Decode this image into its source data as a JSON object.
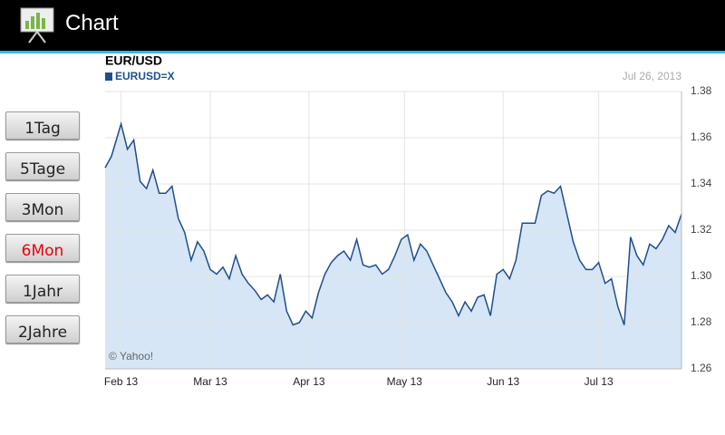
{
  "app": {
    "title": "Chart",
    "buttons": [
      "1Tag",
      "5Tage",
      "3Mon",
      "6Mon",
      "1Jahr",
      "2Jahre"
    ],
    "selected_button": 3
  },
  "chart_data": {
    "type": "area",
    "title": "EUR/USD",
    "date": "Jul 26, 2013",
    "credit": "© Yahoo!",
    "x": [
      -5,
      -3,
      0,
      2,
      4,
      6,
      8,
      10,
      12,
      14,
      16,
      18,
      20,
      22,
      24,
      26,
      28,
      30,
      32,
      34,
      36,
      38,
      40,
      42,
      44,
      46,
      48,
      50,
      52,
      54,
      56,
      58,
      60,
      62,
      64,
      66,
      68,
      70,
      72,
      74,
      76,
      78,
      80,
      82,
      84,
      86,
      88,
      90,
      92,
      94,
      96,
      98,
      100,
      102,
      104,
      106,
      108,
      110,
      112,
      114,
      116,
      118,
      120,
      122,
      124,
      126,
      128,
      130,
      132,
      134,
      136,
      138,
      140,
      142,
      144,
      146,
      148,
      150,
      152,
      154,
      156,
      158,
      160,
      162,
      164,
      166,
      168,
      170,
      172,
      174,
      176
    ],
    "series": [
      {
        "name": "EURUSD=X",
        "color": "#1f4e8c",
        "fill": "#d6e6f6",
        "values": [
          1.347,
          1.352,
          1.366,
          1.355,
          1.359,
          1.341,
          1.338,
          1.346,
          1.336,
          1.336,
          1.339,
          1.325,
          1.319,
          1.307,
          1.315,
          1.311,
          1.303,
          1.301,
          1.304,
          1.299,
          1.309,
          1.301,
          1.297,
          1.294,
          1.29,
          1.292,
          1.289,
          1.301,
          1.285,
          1.279,
          1.28,
          1.285,
          1.282,
          1.293,
          1.301,
          1.306,
          1.309,
          1.311,
          1.307,
          1.316,
          1.305,
          1.304,
          1.305,
          1.301,
          1.303,
          1.309,
          1.316,
          1.318,
          1.307,
          1.314,
          1.311,
          1.305,
          1.299,
          1.293,
          1.289,
          1.283,
          1.289,
          1.285,
          1.291,
          1.292,
          1.283,
          1.301,
          1.303,
          1.299,
          1.307,
          1.323,
          1.323,
          1.323,
          1.335,
          1.337,
          1.336,
          1.339,
          1.327,
          1.315,
          1.307,
          1.303,
          1.303,
          1.306,
          1.297,
          1.299,
          1.287,
          1.279,
          1.317,
          1.309,
          1.305,
          1.314,
          1.312,
          1.316,
          1.322,
          1.319,
          1.327
        ]
      }
    ],
    "xlim": [
      -5,
      176
    ],
    "xticks": [
      {
        "value": 0,
        "label": "Feb 13"
      },
      {
        "value": 28,
        "label": "Mar 13"
      },
      {
        "value": 59,
        "label": "Apr 13"
      },
      {
        "value": 89,
        "label": "May 13"
      },
      {
        "value": 120,
        "label": "Jun 13"
      },
      {
        "value": 150,
        "label": "Jul 13"
      }
    ],
    "ylim": [
      1.26,
      1.38
    ],
    "yticks": [
      1.26,
      1.28,
      {
        "value": 1.3,
        "label": "1.30"
      },
      1.32,
      1.34,
      1.36,
      1.38
    ],
    "grid": true
  }
}
